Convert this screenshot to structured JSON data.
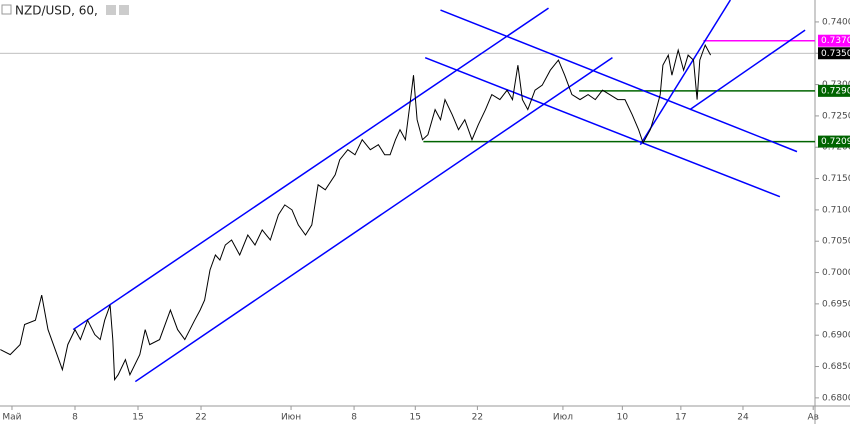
{
  "chart_data": {
    "type": "line",
    "title": "NZD/USD, 60,",
    "color": "#000000",
    "x": [
      -1.3,
      -0.2,
      0.9,
      1.4,
      2.6,
      3.3,
      4.0,
      4.8,
      5.6,
      6.2,
      7.0,
      7.6,
      8.4,
      9.2,
      9.8,
      10.3,
      10.9,
      11.2,
      11.4,
      11.8,
      12.6,
      13.1,
      14.2,
      14.8,
      15.3,
      16.4,
      17.6,
      18.4,
      19.2,
      20.3,
      20.9,
      21.4,
      22.0,
      22.6,
      23.1,
      23.7,
      24.4,
      25.3,
      26.2,
      27.0,
      27.8,
      28.7,
      29.6,
      30.3,
      31.1,
      31.8,
      32.6,
      33.3,
      34.0,
      34.8,
      35.9,
      36.4,
      37.3,
      38.1,
      38.9,
      39.8,
      40.7,
      41.4,
      42.0,
      42.6,
      43.1,
      43.7,
      44.2,
      44.6,
      45.0,
      45.6,
      46.2,
      47.0,
      47.6,
      48.1,
      48.9,
      49.6,
      50.3,
      51.1,
      51.8,
      52.6,
      53.3,
      54.2,
      55.0,
      55.6,
      56.2,
      56.7,
      57.3,
      58.1,
      58.9,
      59.8,
      60.7,
      61.4,
      62.2,
      63.1,
      64.0,
      64.8,
      65.6,
      66.4,
      67.3,
      68.1,
      68.9,
      69.6,
      70.1,
      70.9,
      71.4,
      72.0,
      72.3,
      72.9,
      73.3,
      74.0,
      74.6,
      75.1,
      75.7,
      76.1,
      76.4,
      77.0,
      77.6
    ],
    "values": [
      0.6877,
      0.6869,
      0.6885,
      0.6917,
      0.6924,
      0.6964,
      0.6909,
      0.6877,
      0.6845,
      0.6885,
      0.6909,
      0.6893,
      0.6924,
      0.6901,
      0.6893,
      0.6924,
      0.6948,
      0.6893,
      0.6829,
      0.6837,
      0.6861,
      0.6837,
      0.6869,
      0.6909,
      0.6885,
      0.6893,
      0.694,
      0.6909,
      0.6893,
      0.6924,
      0.694,
      0.6956,
      0.7004,
      0.7028,
      0.702,
      0.7044,
      0.7052,
      0.7028,
      0.706,
      0.7044,
      0.7068,
      0.7052,
      0.7092,
      0.7108,
      0.71,
      0.7076,
      0.706,
      0.7076,
      0.714,
      0.7132,
      0.7156,
      0.718,
      0.7196,
      0.7188,
      0.7212,
      0.7196,
      0.7204,
      0.7188,
      0.7188,
      0.7212,
      0.7228,
      0.7212,
      0.7268,
      0.7315,
      0.7244,
      0.7212,
      0.722,
      0.726,
      0.7244,
      0.7276,
      0.7252,
      0.7228,
      0.7244,
      0.7212,
      0.7236,
      0.726,
      0.7284,
      0.7276,
      0.7291,
      0.7276,
      0.7331,
      0.7276,
      0.726,
      0.7291,
      0.7299,
      0.7323,
      0.7339,
      0.7315,
      0.7284,
      0.7276,
      0.7284,
      0.7276,
      0.7291,
      0.7284,
      0.7276,
      0.7276,
      0.7252,
      0.7228,
      0.7207,
      0.7228,
      0.7252,
      0.7284,
      0.7331,
      0.7347,
      0.7315,
      0.7355,
      0.7323,
      0.7347,
      0.7339,
      0.7276,
      0.7339,
      0.7363,
      0.7347
    ],
    "xlim": [
      -1.33,
      89.2
    ],
    "xticks": [
      {
        "value": 0,
        "label": "Май"
      },
      {
        "value": 7,
        "label": "8"
      },
      {
        "value": 14,
        "label": "15"
      },
      {
        "value": 21,
        "label": "22"
      },
      {
        "value": 31,
        "label": "Июн"
      },
      {
        "value": 38,
        "label": "8"
      },
      {
        "value": 44.8,
        "label": "15"
      },
      {
        "value": 51.7,
        "label": "22"
      },
      {
        "value": 61.2,
        "label": "Июл"
      },
      {
        "value": 67.8,
        "label": "10"
      },
      {
        "value": 74.3,
        "label": "17"
      },
      {
        "value": 81.2,
        "label": "24"
      },
      {
        "value": 89,
        "label": "Ав"
      }
    ],
    "ylim": [
      0.6787,
      0.7435
    ],
    "yticks": [
      {
        "value": 0.68,
        "label": "0.6800"
      },
      {
        "value": 0.685,
        "label": "0.6850"
      },
      {
        "value": 0.69,
        "label": "0.6900"
      },
      {
        "value": 0.695,
        "label": "0.6950"
      },
      {
        "value": 0.7,
        "label": "0.7000"
      },
      {
        "value": 0.705,
        "label": "0.7050"
      },
      {
        "value": 0.71,
        "label": "0.7100"
      },
      {
        "value": 0.715,
        "label": "0.7150"
      },
      {
        "value": 0.72,
        "label": "0.7200"
      },
      {
        "value": 0.725,
        "label": "0.7250"
      },
      {
        "value": 0.73,
        "label": "0.7300"
      },
      {
        "value": 0.735,
        "label": "0.7350"
      },
      {
        "value": 0.74,
        "label": "0.7400"
      }
    ],
    "trend_lines": [
      {
        "color": "#0000ff",
        "x": [
          6.8,
          59.6
        ],
        "y": [
          0.6909,
          0.7422
        ]
      },
      {
        "color": "#0000ff",
        "x": [
          13.7,
          66.7
        ],
        "y": [
          0.6826,
          0.7343
        ]
      },
      {
        "color": "#0000ff",
        "x": [
          47.6,
          87.2
        ],
        "y": [
          0.7419,
          0.7193
        ]
      },
      {
        "color": "#0000ff",
        "x": [
          45.9,
          85.3
        ],
        "y": [
          0.7343,
          0.7121
        ]
      },
      {
        "color": "#0000ff",
        "x": [
          69.8,
          79.8
        ],
        "y": [
          0.7204,
          0.7435
        ]
      },
      {
        "color": "#0000ff",
        "x": [
          75.3,
          88.1
        ],
        "y": [
          0.726,
          0.7387
        ]
      }
    ],
    "levels": [
      {
        "value": 0.735,
        "label": "0.7350",
        "color": "#000000"
      },
      {
        "value": 0.737,
        "label": "0.7370",
        "color": "#ff00ff",
        "from": 76.8
      },
      {
        "value": 0.729,
        "label": "0.7290",
        "color": "#006400",
        "from": 63.0
      },
      {
        "value": 0.7209,
        "label": "0.7209",
        "color": "#006400",
        "from": 45.7
      }
    ]
  }
}
